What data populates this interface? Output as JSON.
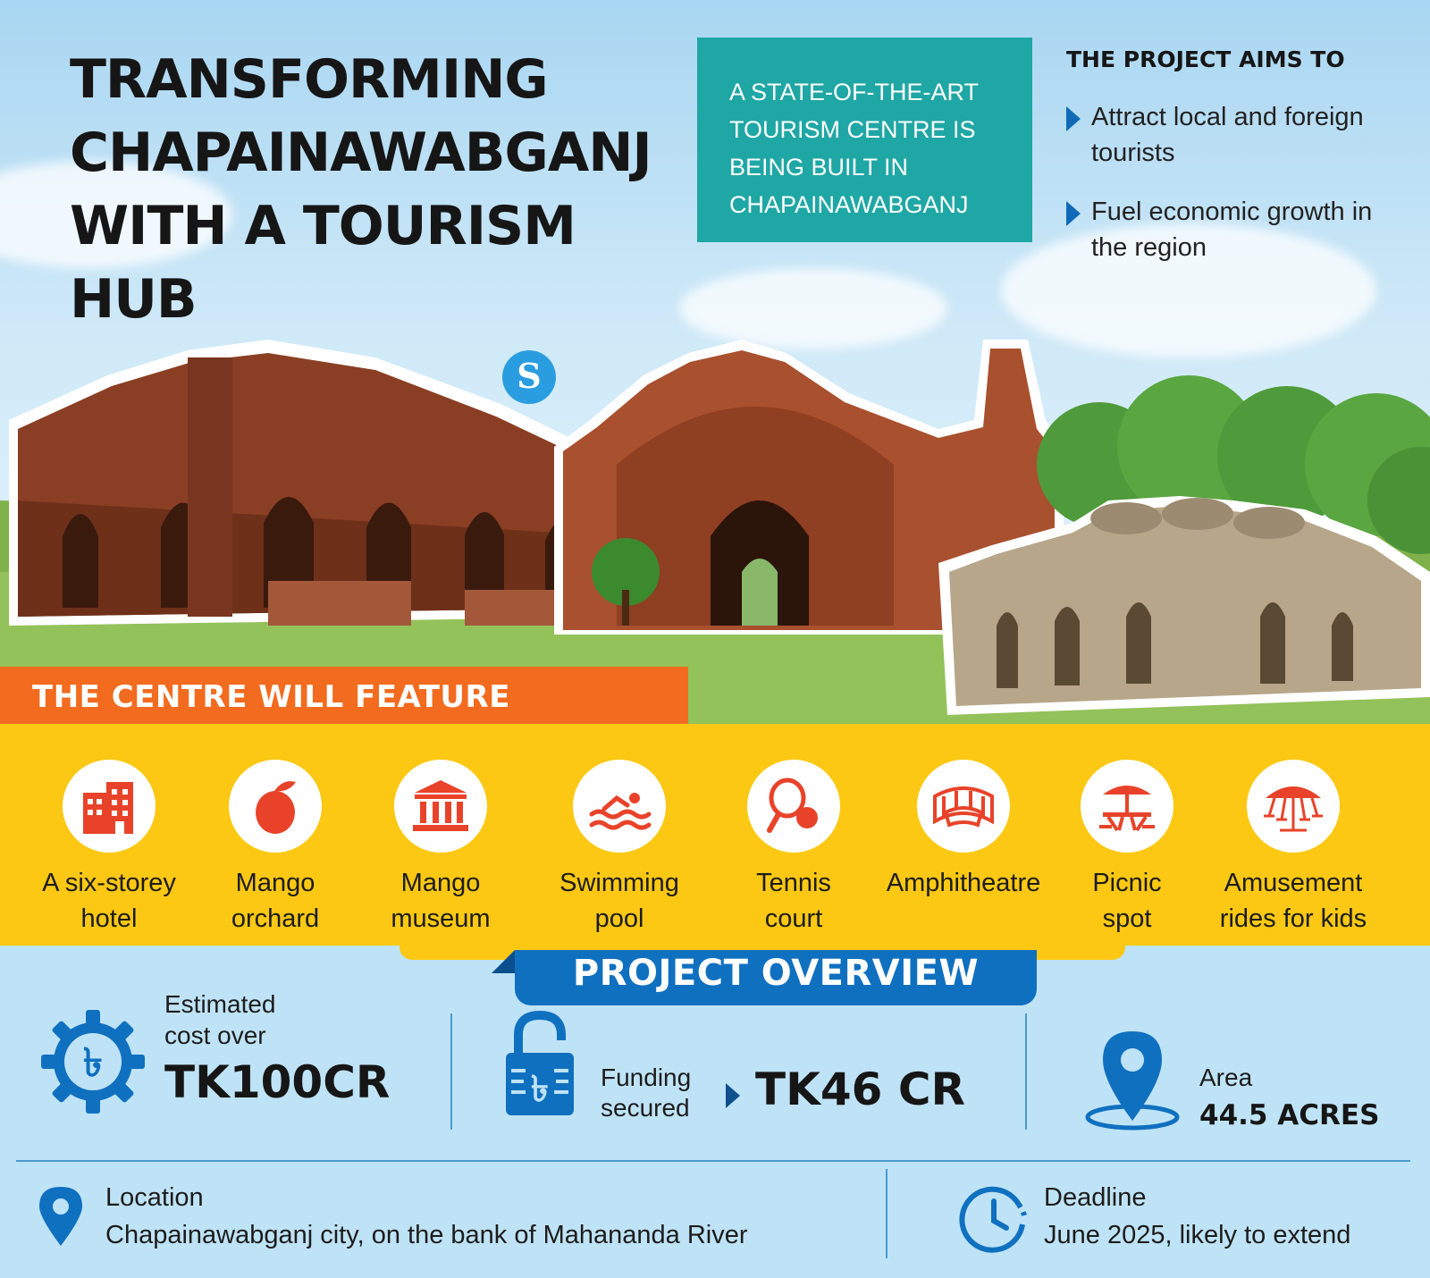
{
  "header": {
    "title": "TRANSFORMING CHAPAINAWABGANJ WITH A TOURISM HUB",
    "intro": "A STATE-OF-THE-ART TOURISM CENTRE IS BEING BUILT IN CHAPAINAWABGANJ",
    "aims_title": "THE PROJECT AIMS TO",
    "aims": [
      "Attract local and foreign tourists",
      "Fuel economic growth in the region"
    ],
    "logo_letter": "S"
  },
  "features": {
    "title": "THE CENTRE WILL FEATURE",
    "items": [
      {
        "line1": "A six-storey",
        "line2": "hotel",
        "icon": "hotel-building-icon"
      },
      {
        "line1": "Mango",
        "line2": "orchard",
        "icon": "mango-icon"
      },
      {
        "line1": "Mango",
        "line2": "museum",
        "icon": "museum-icon"
      },
      {
        "line1": "Swimming",
        "line2": "pool",
        "icon": "swimmer-icon"
      },
      {
        "line1": "Tennis",
        "line2": "court",
        "icon": "tennis-racket-icon"
      },
      {
        "line1": "Amphitheatre",
        "line2": "",
        "icon": "amphitheatre-icon"
      },
      {
        "line1": "Picnic",
        "line2": "spot",
        "icon": "picnic-table-icon"
      },
      {
        "line1": "Amusement",
        "line2": "rides for kids",
        "icon": "carousel-icon"
      }
    ]
  },
  "overview": {
    "title": "PROJECT OVERVIEW",
    "cost_label_1": "Estimated",
    "cost_label_2": "cost over",
    "cost_value": "TK100CR",
    "funding_label_1": "Funding",
    "funding_label_2": "secured",
    "funding_value": "TK46 CR",
    "area_label": "Area",
    "area_value": "44.5 ACRES",
    "location_label": "Location",
    "location_value": "Chapainawabganj city, on the bank of Mahananda River",
    "deadline_label": "Deadline",
    "deadline_value": "June 2025, likely to extend"
  },
  "colors": {
    "orange": "#f26b1f",
    "yellow": "#fcc813",
    "blue": "#1070c0",
    "teal": "#1fa7a5",
    "icon_red": "#e8432a"
  }
}
